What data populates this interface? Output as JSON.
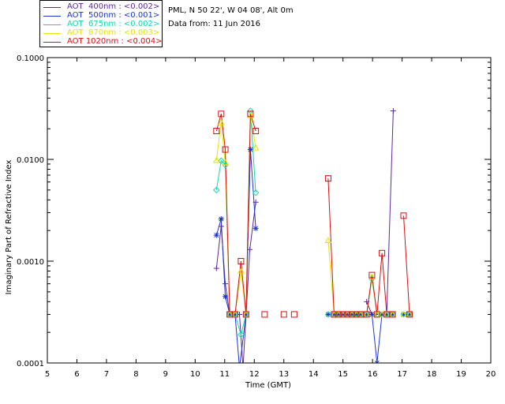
{
  "legend": [
    {
      "label": "AOT  400nm : <0.002>",
      "color": "#5a2aa0"
    },
    {
      "label": "AOT  500nm : <0.001>",
      "color": "#1c34d8"
    },
    {
      "label": "AOT  675nm : <0.002>",
      "color": "#10d8a8"
    },
    {
      "label": "AOT  870nm : <0.003>",
      "color": "#e8e000"
    },
    {
      "label": "AOT 1020nm : <0.004>",
      "color": "#d81010"
    }
  ],
  "info": {
    "location": "PML, N 50 22', W 04 08', Alt 0m",
    "date": "Data from: 11 Jun 2016"
  },
  "chart_data": {
    "type": "line",
    "xlabel": "Time (GMT)",
    "ylabel": "Imaginary Part of Refractive Index",
    "xlim": [
      5,
      20
    ],
    "ylim": [
      0.0001,
      0.1
    ],
    "yscale": "log",
    "xticks": [
      "5",
      "6",
      "7",
      "8",
      "9",
      "10",
      "11",
      "12",
      "13",
      "14",
      "15",
      "16",
      "17",
      "18",
      "19",
      "20"
    ],
    "yticks": [
      {
        "value": 0.0001,
        "label": "0.0001"
      },
      {
        "value": 0.001,
        "label": "0.0010"
      },
      {
        "value": 0.01,
        "label": "0.0100"
      },
      {
        "value": 0.1,
        "label": "0.1000"
      }
    ],
    "series": [
      {
        "name": "AOT  400nm : <0.002>",
        "color": "#5a2aa0",
        "marker": "plus",
        "segments": [
          [
            [
              10.72,
              0.00085
            ],
            [
              10.88,
              0.0022
            ],
            [
              11.02,
              0.0006
            ],
            [
              11.17,
              0.0003
            ],
            [
              11.35,
              0.0003
            ],
            [
              11.5,
              0.0003
            ],
            [
              11.62,
              9e-05
            ],
            [
              11.85,
              0.0013
            ],
            [
              12.05,
              0.0038
            ]
          ],
          [
            [
              15.8,
              0.0004
            ],
            [
              15.98,
              0.0003
            ],
            [
              16.12,
              0.0003
            ],
            [
              16.3,
              0.0003
            ],
            [
              16.48,
              0.0003
            ],
            [
              16.7,
              0.03
            ]
          ]
        ]
      },
      {
        "name": "AOT  500nm : <0.001>",
        "color": "#1c34d8",
        "marker": "star",
        "segments": [
          [
            [
              10.72,
              0.0018
            ],
            [
              10.88,
              0.0026
            ],
            [
              11.02,
              0.00045
            ],
            [
              11.17,
              0.0003
            ],
            [
              11.35,
              0.0003
            ],
            [
              11.5,
              9e-05
            ],
            [
              11.72,
              0.0003
            ],
            [
              11.87,
              0.0125
            ],
            [
              12.05,
              0.0021
            ]
          ],
          [
            [
              14.5,
              0.0003
            ],
            [
              14.7,
              0.0003
            ],
            [
              14.85,
              0.0003
            ],
            [
              15.0,
              0.0003
            ],
            [
              15.15,
              0.0003
            ],
            [
              15.3,
              0.0003
            ],
            [
              15.45,
              0.0003
            ],
            [
              15.6,
              0.0003
            ],
            [
              15.8,
              0.0003
            ],
            [
              15.98,
              0.0003
            ],
            [
              16.15,
              0.0001
            ],
            [
              16.32,
              0.0003
            ],
            [
              16.48,
              0.0003
            ],
            [
              16.68,
              0.0003
            ]
          ],
          [
            [
              17.05,
              0.0003
            ],
            [
              17.25,
              0.0003
            ]
          ]
        ]
      },
      {
        "name": "AOT  675nm : <0.002>",
        "color": "#10d8a8",
        "marker": "diamond",
        "segments": [
          [
            [
              10.72,
              0.005
            ],
            [
              10.88,
              0.0097
            ],
            [
              11.02,
              0.0088
            ],
            [
              11.17,
              0.0003
            ],
            [
              11.35,
              0.0003
            ],
            [
              11.55,
              0.00019
            ],
            [
              11.72,
              0.0003
            ],
            [
              11.87,
              0.03
            ],
            [
              12.05,
              0.0047
            ]
          ],
          [
            [
              14.5,
              0.0003
            ],
            [
              14.7,
              0.0003
            ],
            [
              14.85,
              0.0003
            ],
            [
              15.0,
              0.0003
            ],
            [
              15.15,
              0.0003
            ],
            [
              15.3,
              0.0003
            ],
            [
              15.45,
              0.0003
            ],
            [
              15.6,
              0.0003
            ],
            [
              15.8,
              0.0003
            ],
            [
              15.98,
              0.00067
            ],
            [
              16.15,
              0.0003
            ],
            [
              16.32,
              0.0003
            ],
            [
              16.48,
              0.0003
            ],
            [
              16.68,
              0.0003
            ]
          ],
          [
            [
              17.05,
              0.0003
            ],
            [
              17.25,
              0.0003
            ]
          ]
        ]
      },
      {
        "name": "AOT  870nm : <0.003>",
        "color": "#e8e000",
        "marker": "triangle",
        "segments": [
          [
            [
              10.72,
              0.0098
            ],
            [
              10.88,
              0.023
            ],
            [
              11.02,
              0.0093
            ],
            [
              11.17,
              0.0003
            ],
            [
              11.35,
              0.0003
            ],
            [
              11.55,
              0.0008
            ],
            [
              11.72,
              0.0003
            ],
            [
              11.87,
              0.027
            ],
            [
              12.05,
              0.013
            ]
          ],
          [
            [
              14.5,
              0.0016
            ],
            [
              14.7,
              0.0003
            ],
            [
              14.85,
              0.0003
            ],
            [
              15.0,
              0.0003
            ],
            [
              15.15,
              0.0003
            ],
            [
              15.3,
              0.0003
            ],
            [
              15.45,
              0.0003
            ],
            [
              15.6,
              0.0003
            ],
            [
              15.8,
              0.0003
            ],
            [
              15.98,
              0.0007
            ],
            [
              16.15,
              0.0003
            ],
            [
              16.32,
              0.0003
            ],
            [
              16.48,
              0.0003
            ],
            [
              16.68,
              0.0003
            ]
          ],
          [
            [
              17.05,
              0.0003
            ],
            [
              17.25,
              0.0003
            ]
          ]
        ]
      },
      {
        "name": "AOT 1020nm : <0.004>",
        "color": "#d81010",
        "marker": "square",
        "segments": [
          [
            [
              10.72,
              0.019
            ],
            [
              10.88,
              0.028
            ],
            [
              11.02,
              0.0125
            ],
            [
              11.17,
              0.0003
            ],
            [
              11.35,
              0.0003
            ],
            [
              11.55,
              0.001
            ],
            [
              11.72,
              0.0003
            ],
            [
              11.87,
              0.028
            ],
            [
              12.05,
              0.019
            ]
          ],
          [
            [
              12.35,
              0.0003
            ]
          ],
          [
            [
              13.0,
              0.0003
            ]
          ],
          [
            [
              13.35,
              0.0003
            ]
          ],
          [
            [
              14.5,
              0.0065
            ],
            [
              14.7,
              0.0003
            ],
            [
              14.85,
              0.0003
            ],
            [
              15.0,
              0.0003
            ],
            [
              15.15,
              0.0003
            ],
            [
              15.3,
              0.0003
            ],
            [
              15.45,
              0.0003
            ],
            [
              15.6,
              0.0003
            ],
            [
              15.8,
              0.0003
            ],
            [
              15.98,
              0.00073
            ],
            [
              16.15,
              0.0003
            ],
            [
              16.32,
              0.0012
            ],
            [
              16.48,
              0.0003
            ],
            [
              16.68,
              0.0003
            ]
          ],
          [
            [
              17.05,
              0.0028
            ],
            [
              17.25,
              0.0003
            ]
          ]
        ]
      }
    ]
  }
}
